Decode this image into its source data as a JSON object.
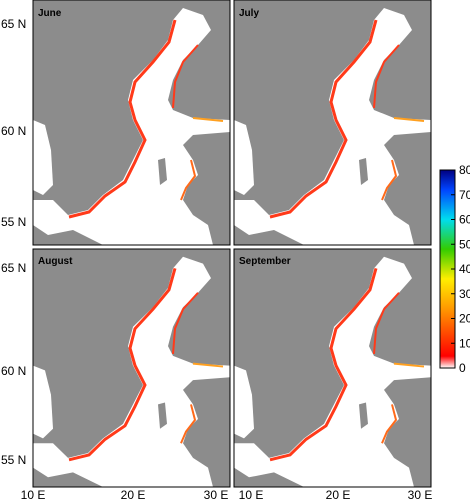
{
  "panels": [
    {
      "title": "June"
    },
    {
      "title": "July"
    },
    {
      "title": "August"
    },
    {
      "title": "September"
    }
  ],
  "y_axis": {
    "ticks": [
      "65 N",
      "60 N",
      "55 N"
    ]
  },
  "x_axis": {
    "ticks": [
      "10 E",
      "20 E",
      "30 E"
    ]
  },
  "colorbar": {
    "ticks": [
      0,
      10,
      20,
      30,
      40,
      50,
      60,
      70,
      80
    ]
  }
}
